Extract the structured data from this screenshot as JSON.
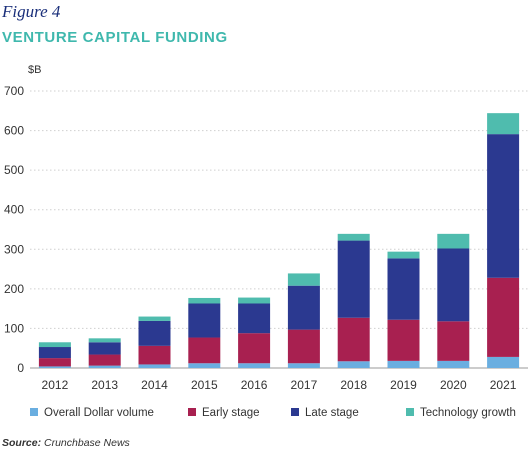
{
  "figure_label": "Figure 4",
  "chart_data": {
    "type": "bar",
    "stacked": true,
    "title": "VENTURE CAPITAL FUNDING",
    "unit_label": "$B",
    "categories": [
      "2012",
      "2013",
      "2014",
      "2015",
      "2016",
      "2017",
      "2018",
      "2019",
      "2020",
      "2021"
    ],
    "series": [
      {
        "name": "Overall Dollar volume",
        "color": "#6aaee0",
        "values": [
          4,
          6,
          9,
          12,
          12,
          12,
          17,
          18,
          18,
          28
        ]
      },
      {
        "name": "Early stage",
        "color": "#a82050",
        "values": [
          21,
          28,
          47,
          65,
          76,
          85,
          110,
          104,
          100,
          200
        ]
      },
      {
        "name": "Late stage",
        "color": "#2b3990",
        "values": [
          28,
          31,
          63,
          86,
          75,
          111,
          195,
          155,
          184,
          363
        ]
      },
      {
        "name": "Technology growth",
        "color": "#4fbcae",
        "values": [
          12,
          10,
          11,
          14,
          15,
          31,
          17,
          17,
          37,
          53
        ]
      }
    ],
    "ylim": [
      0,
      700
    ],
    "yticks": [
      0,
      100,
      200,
      300,
      400,
      500,
      600,
      700
    ],
    "grid": "horizontal dotted",
    "legend_position": "bottom"
  },
  "source": {
    "prefix": "Source:",
    "text": "Crunchbase News"
  }
}
